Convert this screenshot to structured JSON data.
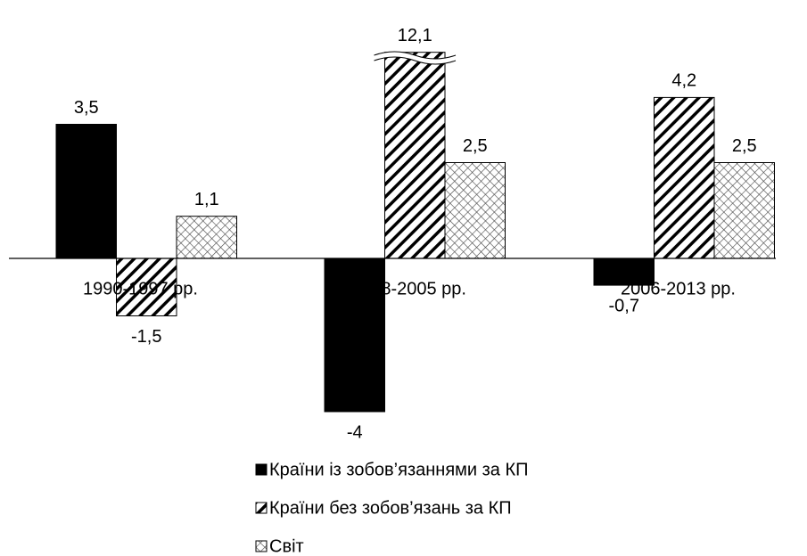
{
  "chart_data": {
    "type": "bar",
    "categories": [
      "1990-1997 рр.",
      "1998-2005 рр.",
      "2006-2013 рр."
    ],
    "series": [
      {
        "name": "Країни із зобов’язаннями за КП",
        "color": "#000000",
        "pattern": "solid",
        "values": [
          3.5,
          -4,
          -0.7
        ],
        "value_labels": [
          "3,5",
          "-4",
          "-0,7"
        ]
      },
      {
        "name": "Країни без зобов’язань за  КП",
        "color": "#000000",
        "pattern": "diagonal",
        "values": [
          -1.5,
          12.1,
          4.2
        ],
        "value_labels": [
          "-1,5",
          "12,1",
          "4,2"
        ]
      },
      {
        "name": "Світ",
        "color": "#000000",
        "pattern": "crosshatch",
        "values": [
          1.1,
          2.5,
          2.5
        ],
        "value_labels": [
          "1,1",
          "2,5",
          "2,5"
        ]
      }
    ],
    "axis_break": true,
    "legend": "bottom"
  }
}
